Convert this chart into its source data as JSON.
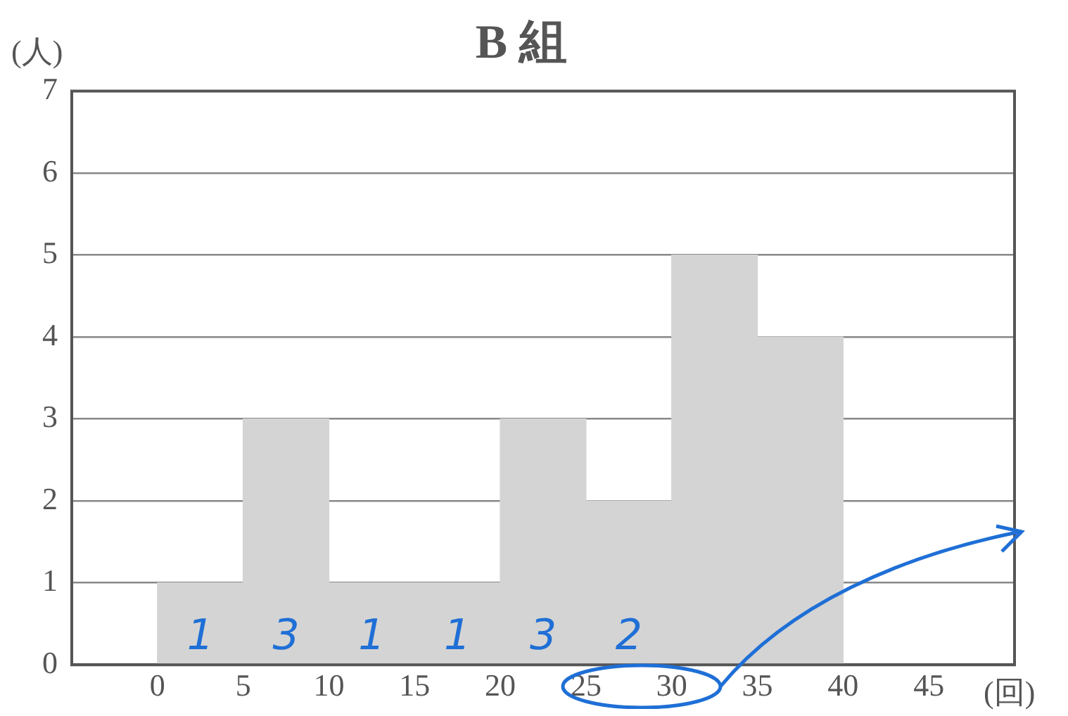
{
  "chart_data": {
    "type": "histogram",
    "title": "B 組",
    "xlabel": "(回)",
    "ylabel": "(人)",
    "bins": [
      0,
      5,
      10,
      15,
      20,
      25,
      30,
      35,
      40
    ],
    "values": [
      1,
      3,
      1,
      1,
      3,
      2,
      5,
      4
    ],
    "value_labels": [
      "1",
      "3",
      "1",
      "1",
      "3",
      "2",
      null,
      null
    ],
    "color": "#d4d4d4",
    "xlim": [
      -5,
      50
    ],
    "xticks": [
      0,
      5,
      10,
      15,
      20,
      25,
      30,
      35,
      40,
      45
    ],
    "ylim": [
      0,
      7
    ],
    "yticks": [
      0,
      1,
      2,
      3,
      4,
      5,
      6,
      7
    ],
    "grid": "y",
    "legend": false
  }
}
